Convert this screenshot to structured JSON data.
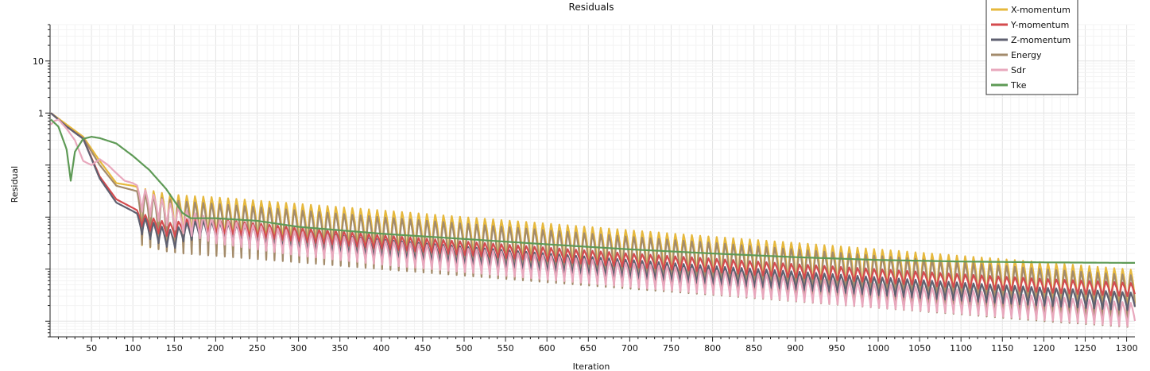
{
  "chart_data": {
    "type": "line",
    "title": "Residuals",
    "xlabel": "Iteration",
    "ylabel": "Residual",
    "yscale": "log",
    "xlim": [
      0,
      1310
    ],
    "ylim": [
      5e-05,
      50
    ],
    "grid": true,
    "legend_position": "top-right",
    "x_ticks": [
      50,
      100,
      150,
      200,
      250,
      300,
      350,
      400,
      450,
      500,
      550,
      600,
      650,
      700,
      750,
      800,
      850,
      900,
      950,
      1000,
      1050,
      1100,
      1150,
      1200,
      1250,
      1300
    ],
    "y_ticks": [
      {
        "value": 10,
        "label": "10"
      },
      {
        "value": 1,
        "label": "1"
      }
    ],
    "series": [
      {
        "name": "X-momentum",
        "color": "#e6b83c",
        "x": [
          1,
          20,
          40,
          60,
          80,
          100,
          120,
          140,
          160,
          200,
          300,
          400,
          500,
          600,
          700,
          800,
          900,
          1000,
          1100,
          1200,
          1300,
          1310
        ],
        "y": [
          1.0,
          0.6,
          0.35,
          0.12,
          0.045,
          0.04,
          0.033,
          0.028,
          0.026,
          0.024,
          0.018,
          0.0135,
          0.01,
          0.0075,
          0.0056,
          0.0042,
          0.0032,
          0.0024,
          0.0018,
          0.00135,
          0.001,
          0.00095
        ],
        "oscillation_low": 0.08
      },
      {
        "name": "Y-momentum",
        "color": "#d44b4e",
        "x": [
          1,
          20,
          40,
          60,
          80,
          100,
          120,
          140,
          150,
          160,
          180,
          200,
          300,
          400,
          500,
          600,
          700,
          800,
          900,
          1000,
          1100,
          1200,
          1300,
          1310
        ],
        "y": [
          1.0,
          0.55,
          0.32,
          0.06,
          0.022,
          0.015,
          0.01,
          0.008,
          0.0075,
          0.009,
          0.0095,
          0.0092,
          0.0062,
          0.0045,
          0.0034,
          0.0026,
          0.002,
          0.0016,
          0.00125,
          0.001,
          0.0008,
          0.00065,
          0.00055,
          0.00053
        ],
        "oscillation_low": 0.55
      },
      {
        "name": "Z-momentum",
        "color": "#5f6070",
        "x": [
          1,
          20,
          40,
          60,
          80,
          100,
          120,
          140,
          150,
          160,
          180,
          200,
          300,
          400,
          500,
          600,
          700,
          800,
          900,
          1000,
          1100,
          1200,
          1300,
          1310
        ],
        "y": [
          1.0,
          0.55,
          0.32,
          0.055,
          0.019,
          0.013,
          0.0085,
          0.006,
          0.0055,
          0.0075,
          0.0085,
          0.008,
          0.0052,
          0.0037,
          0.0027,
          0.002,
          0.0015,
          0.00115,
          0.0009,
          0.0007,
          0.00055,
          0.00044,
          0.00036,
          0.00035
        ],
        "oscillation_low": 0.45
      },
      {
        "name": "Energy",
        "color": "#a38b6c",
        "x": [
          1,
          20,
          40,
          60,
          80,
          100,
          120,
          140,
          160,
          200,
          300,
          400,
          500,
          600,
          700,
          800,
          900,
          1000,
          1100,
          1200,
          1300,
          1310
        ],
        "y": [
          1.0,
          0.55,
          0.33,
          0.1,
          0.04,
          0.033,
          0.027,
          0.022,
          0.02,
          0.018,
          0.0135,
          0.01,
          0.0075,
          0.0056,
          0.0042,
          0.0032,
          0.0024,
          0.0018,
          0.00135,
          0.001,
          0.00078,
          0.00075
        ],
        "oscillation_low": 0.1
      },
      {
        "name": "Sdr",
        "color": "#e8a8bd",
        "x": [
          1,
          5,
          10,
          20,
          30,
          40,
          50,
          60,
          70,
          80,
          90,
          100,
          120,
          140,
          160,
          200,
          300,
          400,
          500,
          600,
          700,
          800,
          900,
          1000,
          1100,
          1200,
          1300,
          1310
        ],
        "y": [
          0.6,
          0.7,
          0.75,
          0.5,
          0.3,
          0.12,
          0.1,
          0.13,
          0.1,
          0.07,
          0.05,
          0.045,
          0.03,
          0.02,
          0.014,
          0.009,
          0.0052,
          0.0035,
          0.0025,
          0.0018,
          0.0013,
          0.00095,
          0.0007,
          0.00052,
          0.0004,
          0.0003,
          0.00023,
          0.00022
        ],
        "oscillation_low": 0.35
      },
      {
        "name": "Tke",
        "color": "#5e9a56",
        "x": [
          1,
          10,
          20,
          25,
          30,
          40,
          50,
          60,
          80,
          100,
          120,
          140,
          160,
          170,
          200,
          250,
          300,
          400,
          500,
          600,
          700,
          800,
          900,
          1000,
          1100,
          1200,
          1300,
          1310
        ],
        "y": [
          0.75,
          0.55,
          0.2,
          0.05,
          0.18,
          0.32,
          0.35,
          0.33,
          0.26,
          0.15,
          0.08,
          0.035,
          0.012,
          0.0095,
          0.0095,
          0.0085,
          0.0065,
          0.0048,
          0.0038,
          0.003,
          0.0024,
          0.002,
          0.0017,
          0.0015,
          0.0014,
          0.00135,
          0.00132,
          0.00132
        ],
        "oscillation_low": 1.0
      }
    ]
  }
}
